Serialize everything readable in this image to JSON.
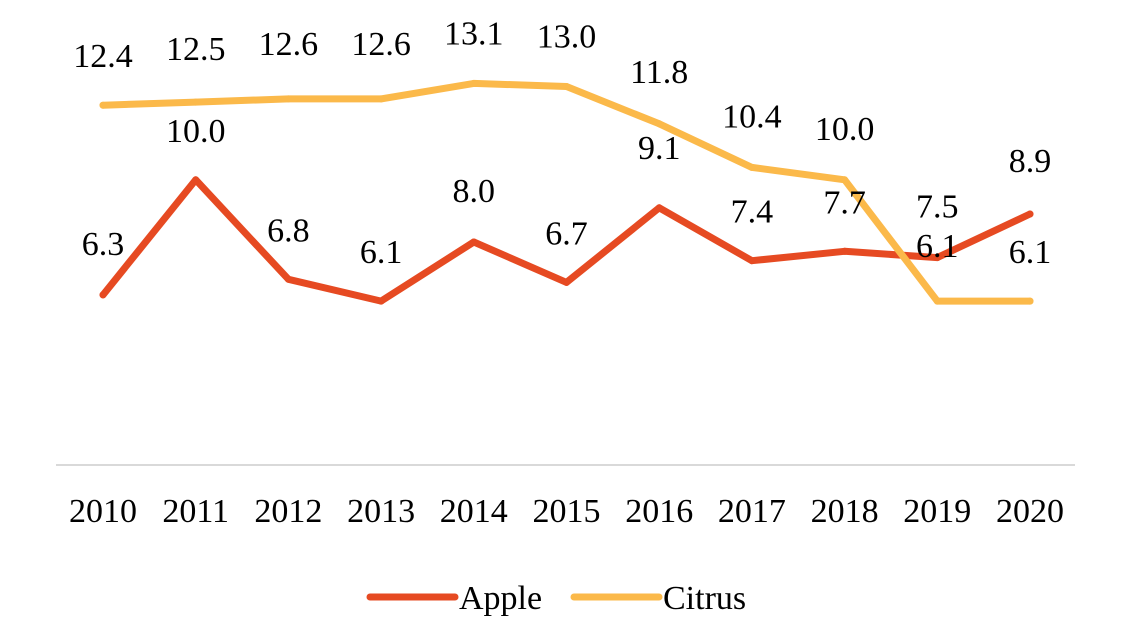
{
  "chart_data": {
    "type": "line",
    "title": "",
    "xlabel": "",
    "ylabel": "",
    "categories": [
      "2010",
      "2011",
      "2012",
      "2013",
      "2014",
      "2015",
      "2016",
      "2017",
      "2018",
      "2019",
      "2020"
    ],
    "ylim": [
      0,
      14
    ],
    "grid": false,
    "legend": "bottom",
    "series": [
      {
        "name": "Apple",
        "color": "#E64A22",
        "values": [
          6.3,
          10.0,
          6.8,
          6.1,
          8.0,
          6.7,
          9.1,
          7.4,
          7.7,
          7.5,
          8.9
        ],
        "labels": [
          "6.3",
          "10.0",
          "6.8",
          "6.1",
          "8.0",
          "6.7",
          "9.1",
          "7.4",
          "7.7",
          "7.5",
          "8.9"
        ]
      },
      {
        "name": "Citrus",
        "color": "#FBB94A",
        "values": [
          12.4,
          12.5,
          12.6,
          12.6,
          13.1,
          13.0,
          11.8,
          10.4,
          10.0,
          6.1,
          6.1
        ],
        "labels": [
          "12.4",
          "12.5",
          "12.6",
          "12.6",
          "13.1",
          "13.0",
          "11.8",
          "10.4",
          "10.0",
          "6.1",
          "6.1"
        ]
      }
    ],
    "axis_color": "#D9D9D9"
  }
}
